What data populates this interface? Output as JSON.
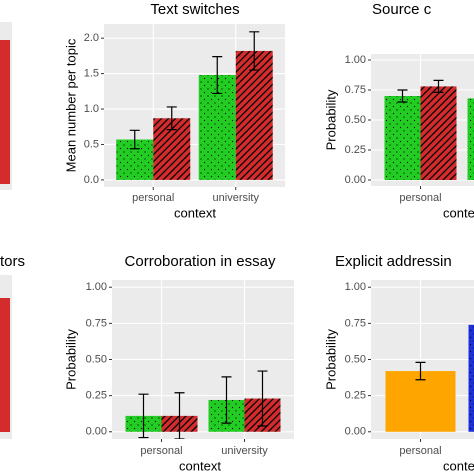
{
  "chart_data": [
    {
      "type": "bar",
      "title": "Text switches",
      "ylabel": "Mean number per topic",
      "xlabel": "context",
      "categories": [
        "personal",
        "university"
      ],
      "ylim": [
        -0.1,
        2.2
      ],
      "yticks": [
        {
          "value": 0,
          "label": "0.0"
        },
        {
          "value": 0.5,
          "label": "0.5"
        },
        {
          "value": 1,
          "label": "1.0"
        },
        {
          "value": 1.5,
          "label": "1.5"
        },
        {
          "value": 2,
          "label": "2.0"
        }
      ],
      "grid": true,
      "series": [
        {
          "color": "#22cc22",
          "pattern": "dots",
          "values": [
            0.57,
            1.48
          ],
          "errors": [
            0.13,
            0.26
          ]
        },
        {
          "color": "#d42c2c",
          "pattern": "hatch",
          "values": [
            0.87,
            1.82
          ],
          "errors": [
            0.16,
            0.27
          ]
        }
      ]
    },
    {
      "type": "bar",
      "title": "Source c",
      "ylabel": "Probability",
      "xlabel": "conte",
      "categories": [
        "personal",
        null
      ],
      "ylim": [
        -0.05,
        1.05
      ],
      "yticks": [
        {
          "value": 0,
          "label": "0.00"
        },
        {
          "value": 0.25,
          "label": "0.25"
        },
        {
          "value": 0.5,
          "label": "0.50"
        },
        {
          "value": 0.75,
          "label": "0.75"
        },
        {
          "value": 1,
          "label": "1.00"
        }
      ],
      "grid": true,
      "series": [
        {
          "color": "#22cc22",
          "pattern": "dots",
          "values": [
            0.7,
            0.68
          ],
          "errors": [
            0.05,
            null
          ]
        },
        {
          "color": "#d42c2c",
          "pattern": "hatch",
          "values": [
            0.78,
            null
          ],
          "errors": [
            0.05,
            null
          ]
        }
      ]
    },
    {
      "type": "bar",
      "title": "Corroboration in essay",
      "ylabel": "Probability",
      "xlabel": "context",
      "categories": [
        "personal",
        "university"
      ],
      "ylim": [
        -0.05,
        1.05
      ],
      "yticks": [
        {
          "value": 0,
          "label": "0.00"
        },
        {
          "value": 0.25,
          "label": "0.25"
        },
        {
          "value": 0.5,
          "label": "0.50"
        },
        {
          "value": 0.75,
          "label": "0.75"
        },
        {
          "value": 1,
          "label": "1.00"
        }
      ],
      "grid": true,
      "series": [
        {
          "color": "#22cc22",
          "pattern": "dots",
          "values": [
            0.11,
            0.22
          ],
          "errors": [
            0.15,
            0.16
          ]
        },
        {
          "color": "#d42c2c",
          "pattern": "hatch",
          "values": [
            0.11,
            0.23
          ],
          "errors": [
            0.16,
            0.19
          ]
        }
      ]
    },
    {
      "type": "bar",
      "title": "Explicit addressin",
      "ylabel": "Probability",
      "xlabel": "conte",
      "categories": [
        "personal",
        null
      ],
      "ylim": [
        -0.05,
        1.05
      ],
      "yticks": [
        {
          "value": 0,
          "label": "0.00"
        },
        {
          "value": 0.25,
          "label": "0.25"
        },
        {
          "value": 0.5,
          "label": "0.50"
        },
        {
          "value": 0.75,
          "label": "0.75"
        },
        {
          "value": 1,
          "label": "1.00"
        }
      ],
      "grid": true,
      "series": [
        {
          "colors": [
            "#ffa500",
            "#1c2fd8"
          ],
          "patterns": [
            "none",
            "dots"
          ],
          "values": [
            0.42,
            0.74
          ],
          "errors": [
            0.06,
            null
          ]
        }
      ]
    },
    {
      "type": "bar",
      "title": "tors"
    }
  ]
}
